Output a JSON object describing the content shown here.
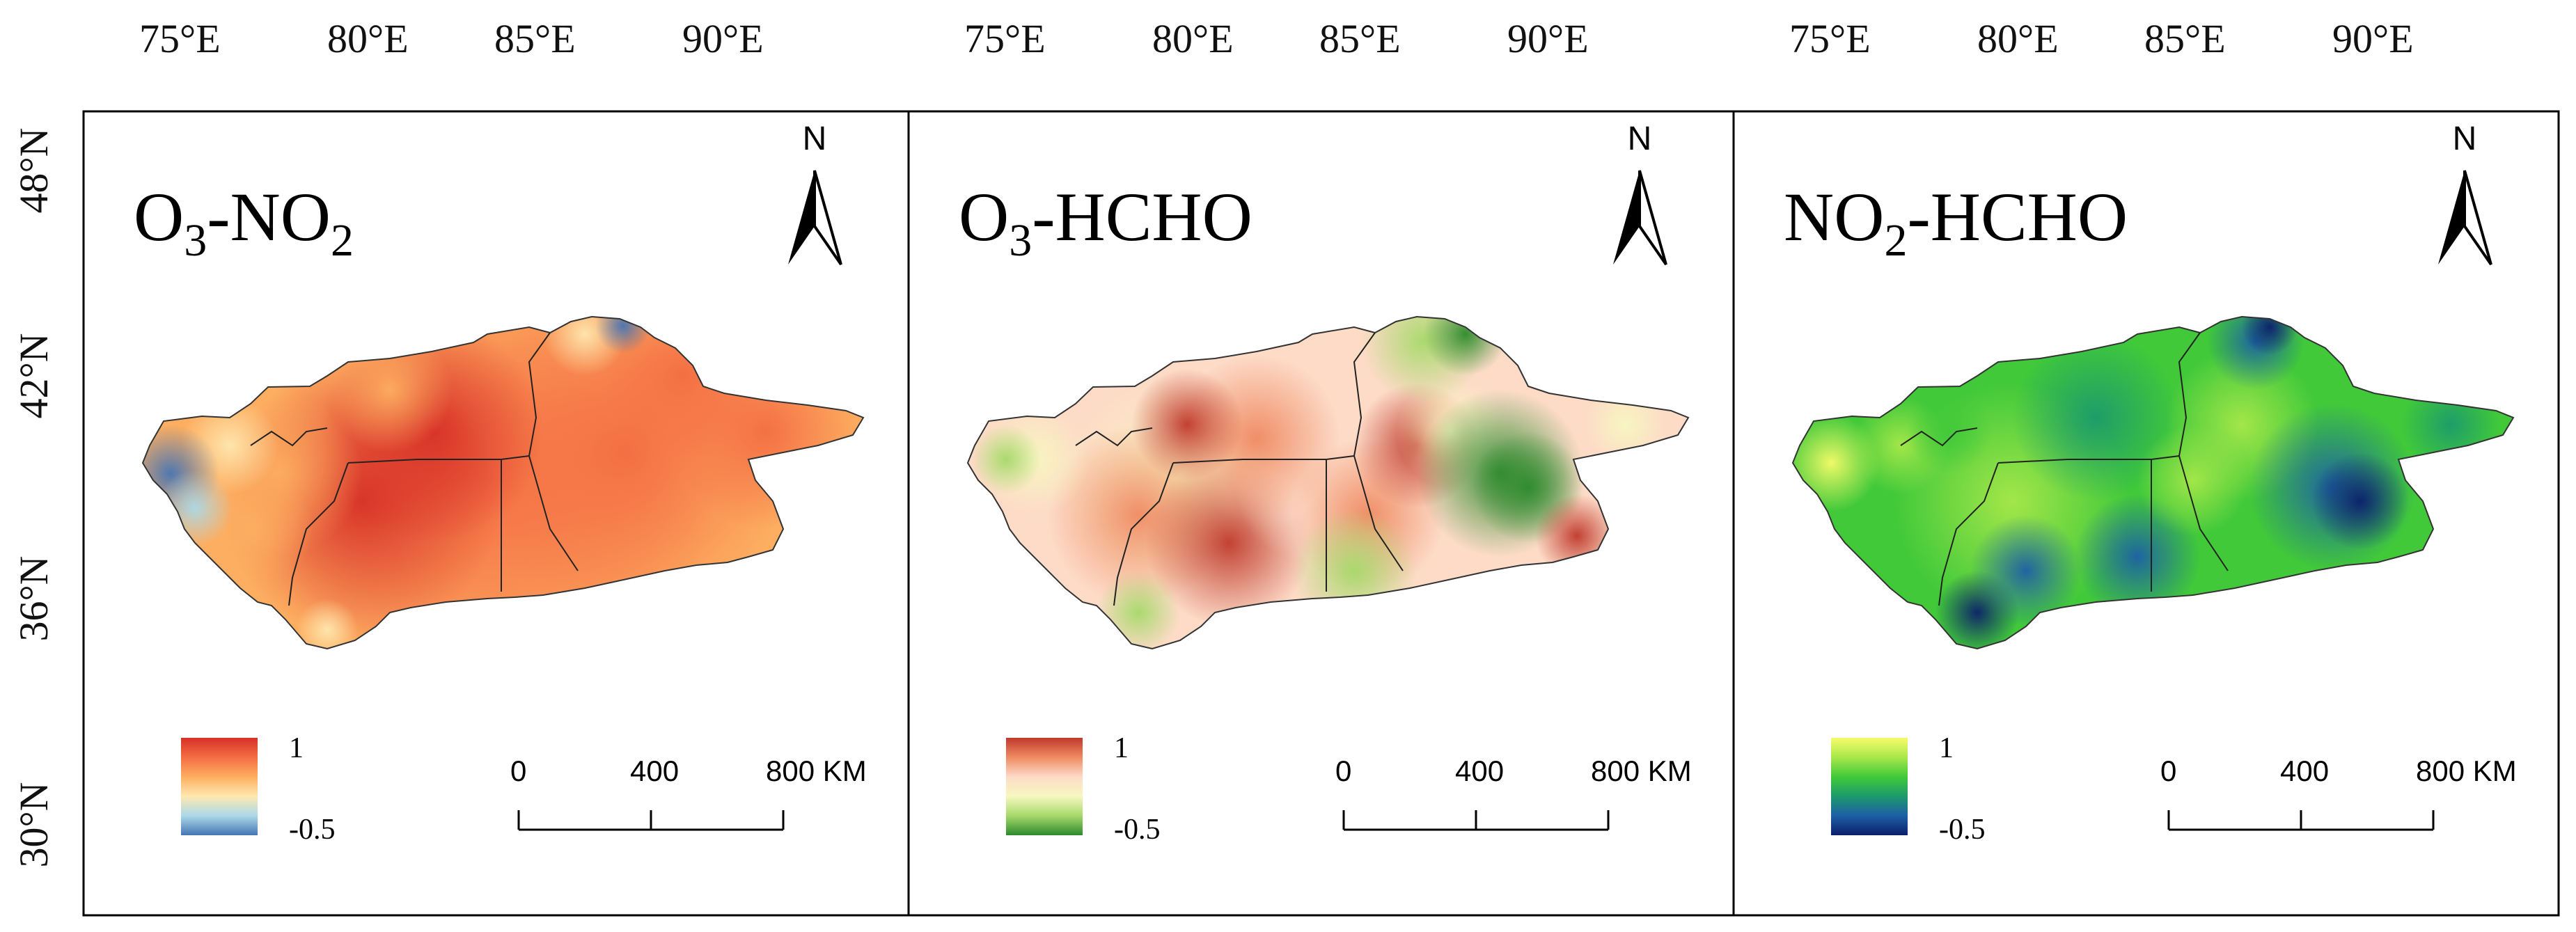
{
  "figure": {
    "longitude_ticks": [
      "75°E",
      "80°E",
      "85°E",
      "90°E"
    ],
    "latitude_ticks": [
      "48°N",
      "42°N",
      "36°N",
      "30°N"
    ],
    "panels": [
      {
        "id": "o3-no2",
        "title_parts": [
          {
            "text": "O",
            "sub": false
          },
          {
            "text": "3",
            "sub": true
          },
          {
            "text": "-NO",
            "sub": false
          },
          {
            "text": "2",
            "sub": true
          }
        ],
        "colormap": "red-yellow-blue",
        "colors": [
          "#d73027",
          "#f46d43",
          "#fdae61",
          "#fee8b0",
          "#abd9e9",
          "#4575b4"
        ],
        "legend": {
          "max_label": "1",
          "min_label": "-0.5"
        }
      },
      {
        "id": "o3-hcho",
        "title_parts": [
          {
            "text": "O",
            "sub": false
          },
          {
            "text": "3",
            "sub": true
          },
          {
            "text": "-HCHO",
            "sub": false
          }
        ],
        "colormap": "red-yellow-green",
        "colors": [
          "#c0392b",
          "#ef8a62",
          "#fddbc7",
          "#f7f7c0",
          "#a6d96a",
          "#2d8a2d"
        ],
        "legend": {
          "max_label": "1",
          "min_label": "-0.5"
        }
      },
      {
        "id": "no2-hcho",
        "title_parts": [
          {
            "text": "NO",
            "sub": false
          },
          {
            "text": "2",
            "sub": true
          },
          {
            "text": "-HCHO",
            "sub": false
          }
        ],
        "colormap": "yellow-green-blue",
        "colors": [
          "#f7fc6a",
          "#a8e84a",
          "#41c93a",
          "#1d9a6c",
          "#1d5fa5",
          "#0b1f6b"
        ],
        "legend": {
          "max_label": "1",
          "min_label": "-0.5"
        }
      }
    ],
    "north_arrow_label": "N",
    "scale_bar": {
      "labels": [
        "0",
        "400",
        "800 KM"
      ]
    }
  }
}
